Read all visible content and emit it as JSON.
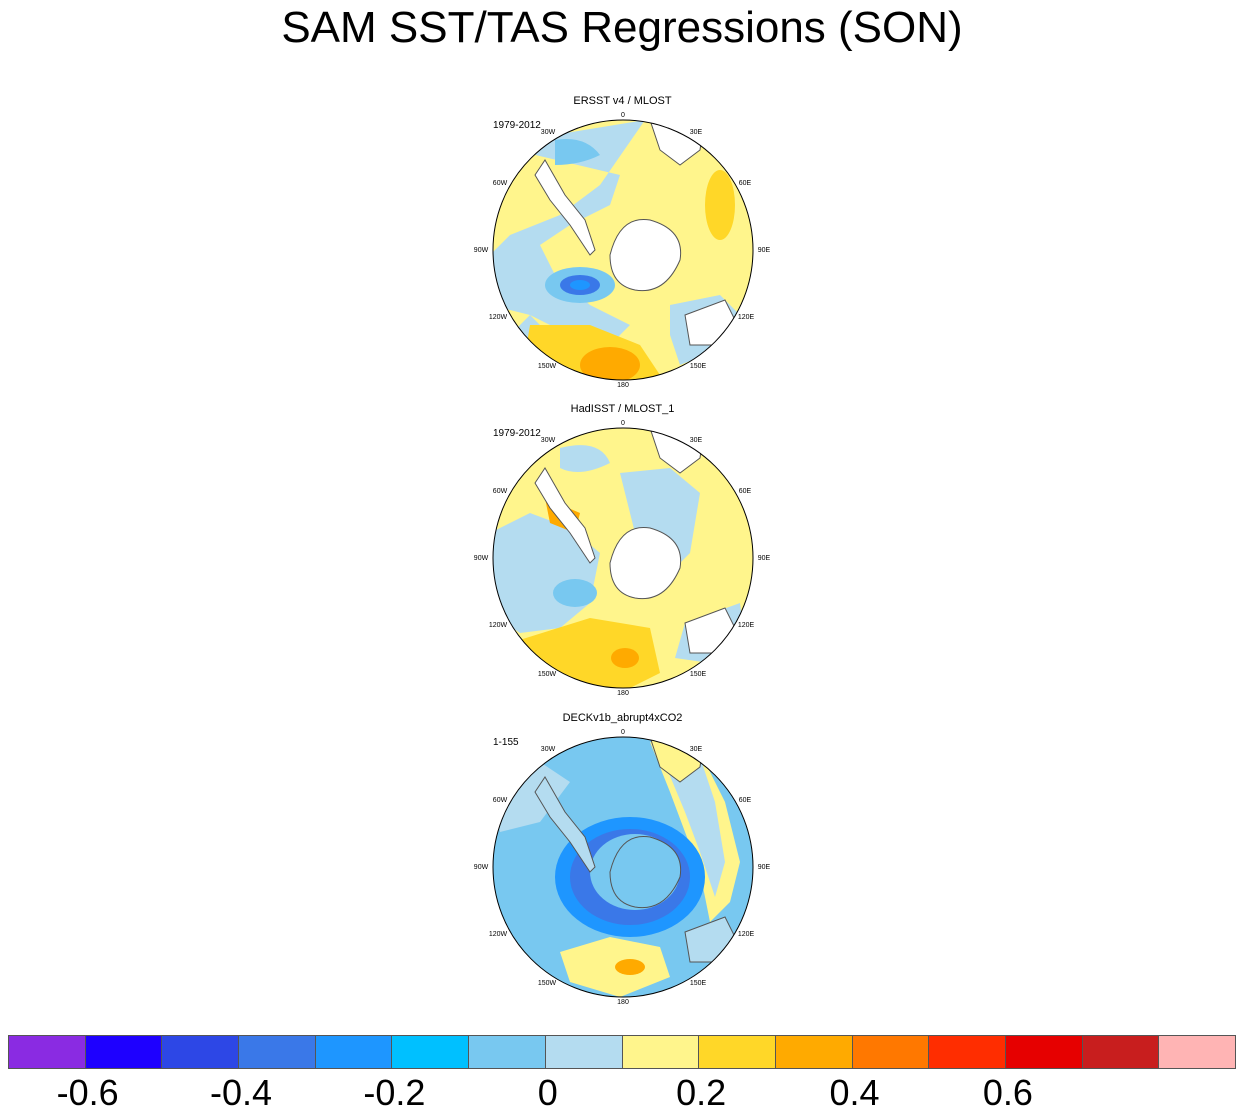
{
  "title": "SAM SST/TAS Regressions (SON)",
  "panels": [
    {
      "title": "ERSST v4 / MLOST",
      "period": "1979-2012"
    },
    {
      "title": "HadISST / MLOST_1",
      "period": "1979-2012"
    },
    {
      "title": "DECKv1b_abrupt4xCO2",
      "period": "1-155"
    }
  ],
  "lon_labels": {
    "l0": "0",
    "l30e": "30E",
    "l60e": "60E",
    "l90e": "90E",
    "l120e": "120E",
    "l150e": "150E",
    "l180": "180",
    "l150w": "150W",
    "l120w": "120W",
    "l90w": "90W",
    "l60w": "60W",
    "l30w": "30W"
  },
  "colorbar": {
    "colors": [
      "#8a2be2",
      "#1e00ff",
      "#2d47e6",
      "#3a78e8",
      "#1e96ff",
      "#00c0ff",
      "#78c8f0",
      "#b4dcf0",
      "#fff58c",
      "#ffd728",
      "#ffaa00",
      "#ff7800",
      "#ff2d00",
      "#e60000",
      "#c81e1e",
      "#ffb4b4"
    ],
    "labels": [
      "-0.6",
      "-0.4",
      "-0.2",
      "0",
      "0.2",
      "0.4",
      "0.6"
    ]
  },
  "colors": {
    "land": "#ffffff",
    "coast": "#555555",
    "near_zero_neg": "#b4dcf0",
    "near_zero_pos": "#fff58c"
  }
}
